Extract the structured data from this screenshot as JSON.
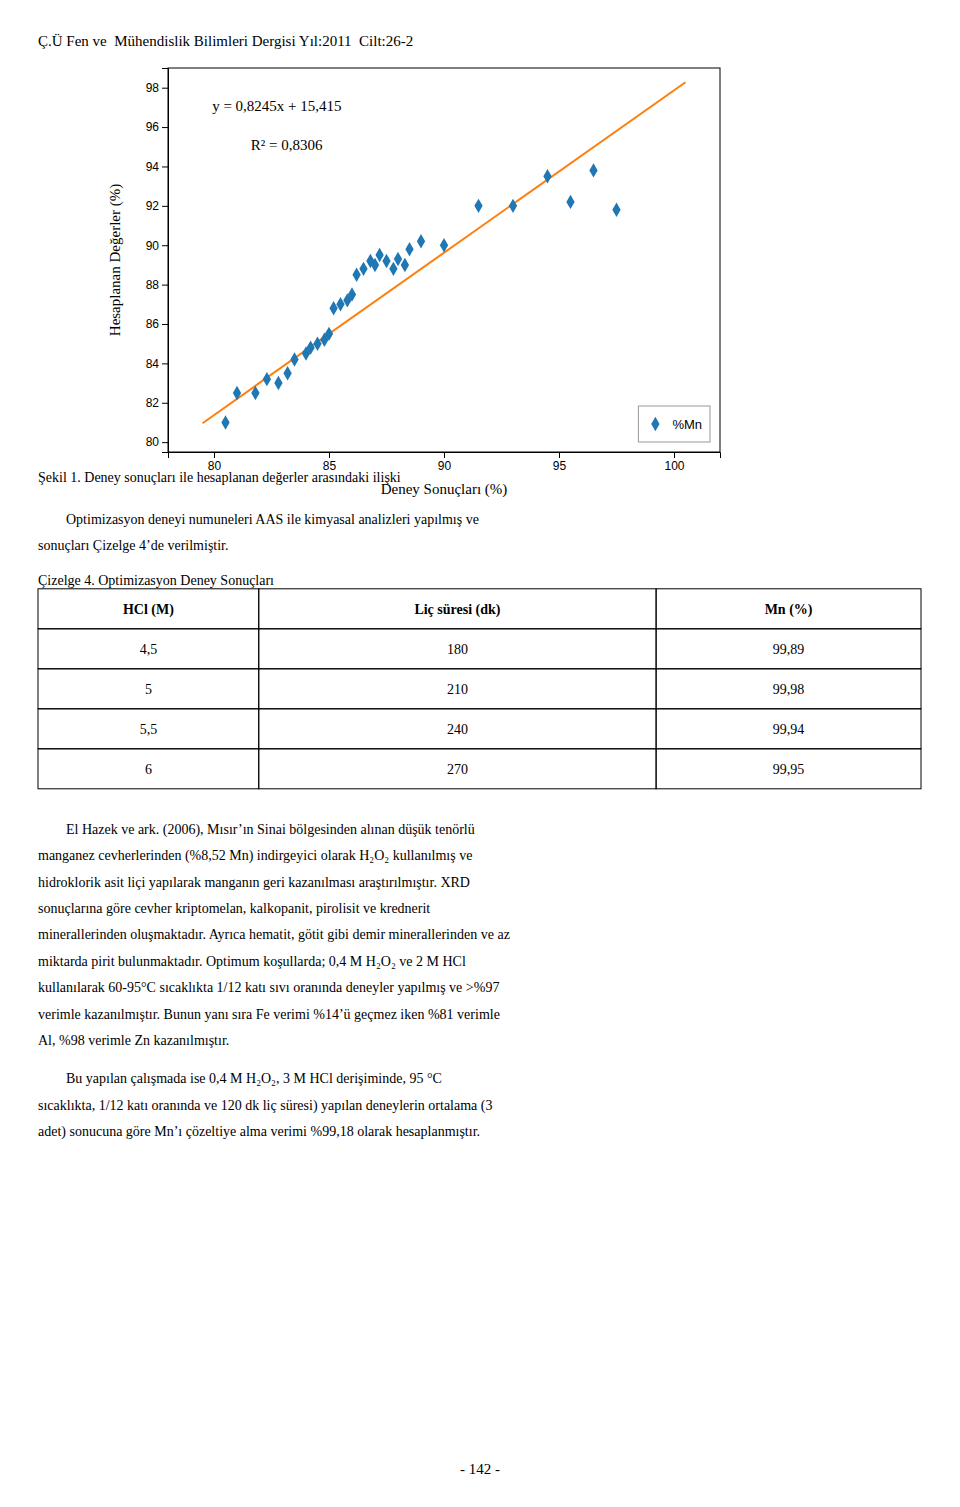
{
  "header": "Ç.Ü Fen ve  Mühendislik Bilimleri Dergisi Yıl:2011  Cilt:26-2",
  "chart_data": {
    "type": "scatter",
    "x_label": "Deney Sonuçları (%)",
    "y_label": "Hesaplanan Değerler (%)",
    "xlim": [
      78,
      102
    ],
    "ylim": [
      79.5,
      99
    ],
    "xticks": [
      80,
      85,
      90,
      95,
      100
    ],
    "yticks": [
      80,
      82,
      84,
      86,
      88,
      90,
      92,
      94,
      96,
      98
    ],
    "grid": false,
    "legend": "lower right",
    "annotations": [
      "y = 0,8245x + 15,415",
      "R² = 0,8306"
    ],
    "series": [
      {
        "name": "%Mn",
        "type": "scatter",
        "marker": "diamond",
        "x": [
          80.5,
          81.0,
          81.8,
          82.3,
          82.8,
          83.2,
          83.5,
          84.0,
          84.2,
          84.5,
          84.8,
          85.0,
          85.2,
          85.5,
          85.8,
          86.0,
          86.2,
          86.5,
          86.8,
          87.0,
          87.2,
          87.5,
          87.8,
          88.0,
          88.3,
          88.5,
          89.0,
          90.0,
          91.5,
          93.0,
          94.5,
          95.5,
          96.5,
          97.5
        ],
        "values": [
          81.0,
          82.5,
          82.5,
          83.2,
          83.0,
          83.5,
          84.2,
          84.5,
          84.8,
          85.0,
          85.2,
          85.5,
          86.8,
          87.0,
          87.2,
          87.5,
          88.5,
          88.8,
          89.2,
          89.0,
          89.5,
          89.2,
          88.8,
          89.3,
          89.0,
          89.8,
          90.2,
          90.0,
          92.0,
          92.0,
          93.5,
          92.2,
          93.8,
          91.8
        ]
      },
      {
        "type": "line",
        "line_style": "solid",
        "x": [
          79.5,
          100.5
        ],
        "values": [
          80.96275,
          98.27725
        ]
      }
    ]
  },
  "caption": "Şekil 1. Deney sonuçları ile hesaplanan değerler arasındaki ilişki",
  "paragraphs": [
    [
      "        Optimizasyon deneyi numuneleri AAS ile kimyasal analizleri yapılmış ve",
      "sonuçları Çizelge 4’de verilmiştir."
    ],
    [
      "        El Hazek ve ark. (2006), Mısır’ın Sinai bölgesinden alınan düşük tenörlü",
      "manganez cevherlerinden (%8,52 Mn) indirgeyici olarak H₂O₂ kullanılmış ve",
      "hidroklorik asit liçi yapılarak manganın geri kazanılması araştırılmıştır. XRD",
      "sonuçlarına göre cevher kriptomelan, kalkopanit, pirolisit ve krednerit",
      "minerallerinden oluşmaktadır. Ayrıca hematit, götit gibi demir minerallerinden ve az",
      "miktarda pirit bulunmaktadır. Optimum koşullarda; 0,4 M H₂O₂ ve 2 M HCl",
      "kullanılarak 60-95°C sıcaklıkta 1/12 katı sıvı oranında deneyler yapılmış ve >%97",
      "verimle kazanılmıştır. Bunun yanı sıra Fe verimi %14’ü geçmez iken %81 verimle",
      "Al, %98 verimle Zn kazanılmıştır."
    ],
    [
      "        Bu yapılan çalışmada ise 0,4 M H₂O₂, 3 M HCl derişiminde, 95 °C",
      "sıcaklıkta, 1/12 katı oranında ve 120 dk liç süresi) yapılan deneylerin ortalama (3",
      "adet) sonucuna göre Mn’ı çözeltiye alma verimi %99,18 olarak hesaplanmıştır."
    ]
  ],
  "table": {
    "title": "Çizelge 4. Optimizasyon Deney Sonuçları",
    "headers": [
      "HCl (M)",
      "Liç süresi (dk)",
      "Mn (%)"
    ],
    "rows": [
      [
        "4,5",
        "180",
        "99,89"
      ],
      [
        "5",
        "210",
        "99,98"
      ],
      [
        "5,5",
        "240",
        "99,94"
      ],
      [
        "6",
        "270",
        "99,95"
      ]
    ]
  },
  "footer": "- 142 -"
}
